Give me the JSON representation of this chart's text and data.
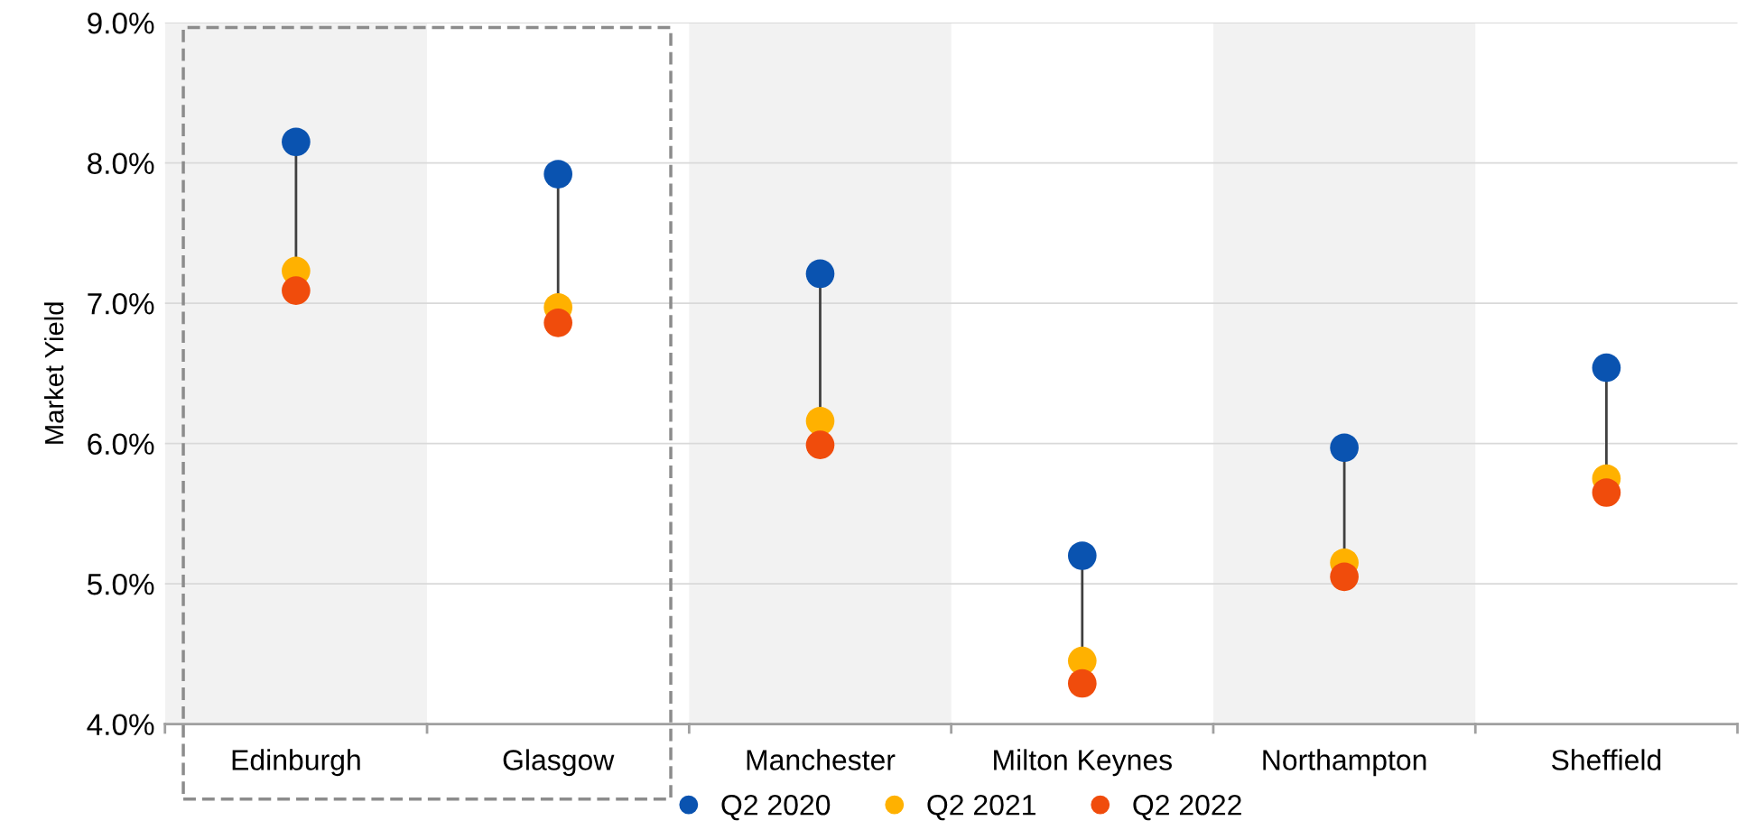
{
  "chart_data": {
    "type": "scatter",
    "ylabel": "Market Yield",
    "categories": [
      "Edinburgh",
      "Glasgow",
      "Manchester",
      "Milton Keynes",
      "Northampton",
      "Sheffield"
    ],
    "series": [
      {
        "name": "Q2 2020",
        "color": "#0a53b0",
        "values": [
          8.15,
          7.92,
          7.21,
          5.2,
          5.97,
          6.54
        ]
      },
      {
        "name": "Q2 2021",
        "color": "#ffb100",
        "values": [
          7.23,
          6.97,
          6.16,
          4.45,
          5.15,
          5.75
        ]
      },
      {
        "name": "Q2 2022",
        "color": "#f04c0c",
        "values": [
          7.09,
          6.86,
          5.99,
          4.29,
          5.05,
          5.65
        ]
      }
    ],
    "ylim": [
      4,
      9
    ],
    "yticks": [
      {
        "value": 4,
        "label": "4.0%"
      },
      {
        "value": 5,
        "label": "5.0%"
      },
      {
        "value": 6,
        "label": "6.0%"
      },
      {
        "value": 7,
        "label": "7.0%"
      },
      {
        "value": 8,
        "label": "8.0%"
      },
      {
        "value": 9,
        "label": "9.0%"
      }
    ],
    "bands": [
      {
        "axis": "x",
        "from": "Edinburgh",
        "to": "Edinburgh",
        "color": "#f2f2f2"
      },
      {
        "axis": "x",
        "from": "Manchester",
        "to": "Manchester",
        "color": "#f2f2f2"
      },
      {
        "axis": "x",
        "from": "Northampton",
        "to": "Northampton",
        "color": "#f2f2f2"
      }
    ],
    "grid": "y",
    "legend": "bottom",
    "marker": "circle"
  }
}
